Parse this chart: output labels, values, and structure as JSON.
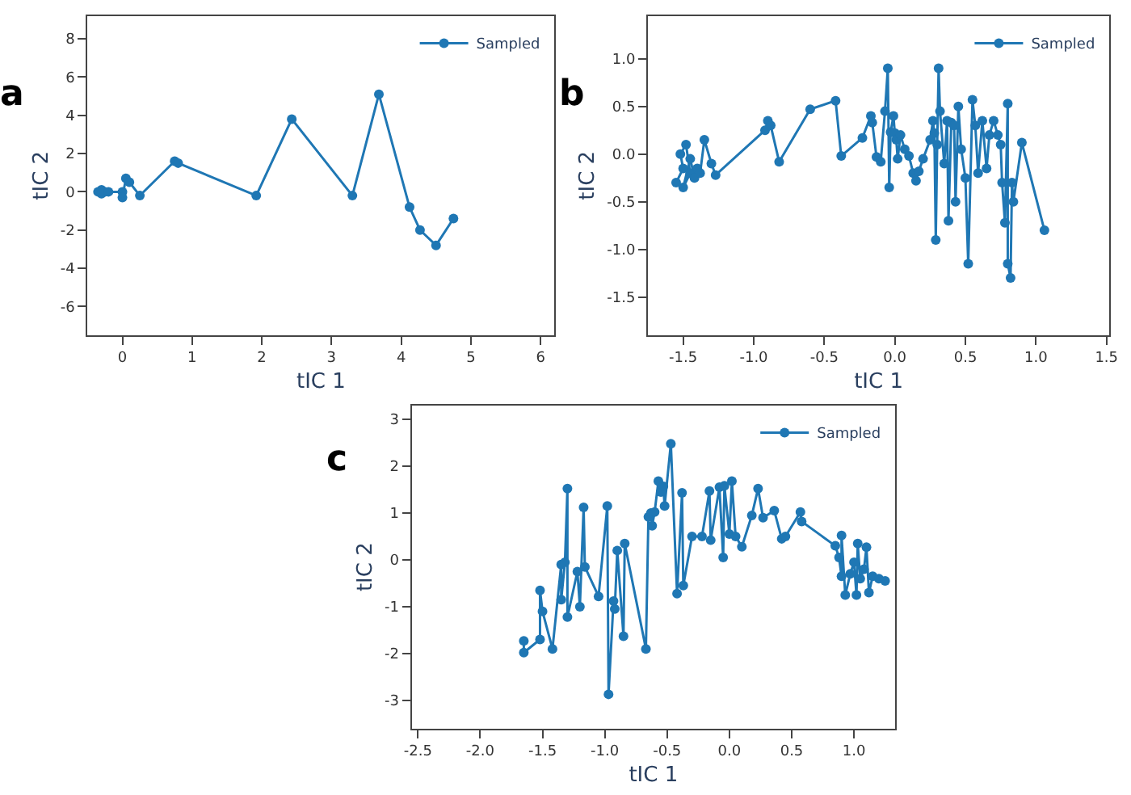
{
  "chart_data": [
    {
      "type": "line",
      "annotations": [
        "a"
      ],
      "xlabel": "tIC 1",
      "ylabel": "tIC 2",
      "xlim": [
        -0.5,
        6.2
      ],
      "ylim": [
        -7.5,
        9.2
      ],
      "xticks": [
        0,
        1,
        2,
        3,
        4,
        5,
        6
      ],
      "yticks": [
        -6,
        -4,
        -2,
        0,
        2,
        4,
        6,
        8
      ],
      "legend": "top right",
      "marker": "circle",
      "line_style": "solid",
      "series": [
        {
          "name": "Sampled",
          "color": "#1f77b4",
          "x": [
            -0.35,
            -0.3,
            -0.25,
            -0.3,
            -0.2,
            0,
            0,
            0.05,
            0.1,
            0.25,
            0.75,
            0.8,
            1.92,
            2.43,
            3.3,
            3.68,
            4.12,
            4.27,
            4.5,
            4.75
          ],
          "values": [
            0,
            0.1,
            0,
            -0.1,
            0,
            0,
            -0.3,
            0.7,
            0.5,
            -0.2,
            1.6,
            1.5,
            -0.2,
            3.8,
            -0.2,
            5.1,
            -0.8,
            -2.0,
            -2.8,
            -1.4
          ]
        }
      ]
    },
    {
      "type": "line",
      "annotations": [
        "b"
      ],
      "xlabel": "tIC 1",
      "ylabel": "tIC 2",
      "xlim": [
        -1.75,
        1.52
      ],
      "ylim": [
        -1.9,
        1.45
      ],
      "xticks": [
        -1.5,
        {
          "value": -1,
          "label": "-1.0"
        },
        -0.5,
        {
          "value": 0,
          "label": "0.0"
        },
        0.5,
        {
          "value": 1,
          "label": "1.0"
        },
        1.5
      ],
      "yticks": [
        -1.5,
        {
          "value": -1,
          "label": "-1.0"
        },
        -0.5,
        {
          "value": 0,
          "label": "0.0"
        },
        0.5,
        {
          "value": 1,
          "label": "1.0"
        }
      ],
      "legend": "top right",
      "marker": "circle",
      "line_style": "solid",
      "series": [
        {
          "name": "Sampled",
          "color": "#1f77b4",
          "x": [
            -1.55,
            -1.5,
            -1.52,
            -1.48,
            -1.45,
            -1.5,
            -1.45,
            -1.42,
            -1.4,
            -1.38,
            -1.35,
            -1.3,
            -1.27,
            -0.92,
            -0.9,
            -0.88,
            -0.82,
            -0.6,
            -0.42,
            -0.38,
            -0.23,
            -0.17,
            -0.16,
            -0.13,
            -0.1,
            -0.07,
            -0.05,
            -0.04,
            -0.03,
            -0.01,
            0,
            0.01,
            0.02,
            0.04,
            0.07,
            0.1,
            0.13,
            0.15,
            0.17,
            0.2,
            0.25,
            0.27,
            0.28,
            0.29,
            0.3,
            0.31,
            0.32,
            0.35,
            0.37,
            0.38,
            0.4,
            0.42,
            0.43,
            0.45,
            0.47,
            0.5,
            0.52,
            0.55,
            0.57,
            0.59,
            0.62,
            0.65,
            0.67,
            0.7,
            0.73,
            0.75,
            0.76,
            0.78,
            0.8,
            0.8,
            0.82,
            0.83,
            0.84,
            0.9,
            1.06
          ],
          "values": [
            -0.3,
            -0.15,
            0,
            0.1,
            -0.2,
            -0.35,
            -0.05,
            -0.25,
            -0.15,
            -0.2,
            0.15,
            -0.1,
            -0.22,
            0.25,
            0.35,
            0.3,
            -0.08,
            0.47,
            0.56,
            -0.02,
            0.17,
            0.4,
            0.33,
            -0.03,
            -0.08,
            0.45,
            0.9,
            -0.35,
            0.23,
            0.4,
            0.22,
            0.15,
            -0.05,
            0.2,
            0.05,
            -0.02,
            -0.2,
            -0.28,
            -0.18,
            -0.05,
            0.15,
            0.35,
            0.22,
            -0.9,
            0.1,
            0.9,
            0.45,
            -0.1,
            0.35,
            -0.7,
            0.33,
            0.3,
            -0.5,
            0.5,
            0.05,
            -0.25,
            -1.15,
            0.57,
            0.3,
            -0.2,
            0.35,
            -0.15,
            0.2,
            0.35,
            0.2,
            0.1,
            -0.3,
            -0.72,
            0.53,
            -1.15,
            -1.3,
            -0.3,
            -0.5,
            0.12,
            -0.8
          ]
        }
      ]
    },
    {
      "type": "line",
      "annotations": [
        "c"
      ],
      "xlabel": "tIC 1",
      "ylabel": "tIC 2",
      "xlim": [
        -2.55,
        1.33
      ],
      "ylim": [
        -3.6,
        3.3
      ],
      "xticks": [
        -2.5,
        {
          "value": -2,
          "label": "-2.0"
        },
        -1.5,
        {
          "value": -1,
          "label": "-1.0"
        },
        -0.5,
        {
          "value": 0,
          "label": "0.0"
        },
        0.5,
        {
          "value": 1,
          "label": "1.0"
        }
      ],
      "yticks": [
        -3,
        -2,
        -1,
        0,
        1,
        2,
        3
      ],
      "legend": "top right",
      "marker": "circle",
      "line_style": "solid",
      "series": [
        {
          "name": "Sampled",
          "color": "#1f77b4",
          "x": [
            -1.65,
            -1.65,
            -1.52,
            -1.52,
            -1.5,
            -1.42,
            -1.35,
            -1.35,
            -1.32,
            -1.3,
            -1.3,
            -1.22,
            -1.2,
            -1.17,
            -1.16,
            -1.05,
            -0.98,
            -0.97,
            -0.93,
            -0.92,
            -0.9,
            -0.85,
            -0.84,
            -0.67,
            -0.65,
            -0.63,
            -0.62,
            -0.6,
            -0.57,
            -0.55,
            -0.53,
            -0.52,
            -0.47,
            -0.42,
            -0.38,
            -0.37,
            -0.3,
            -0.22,
            -0.16,
            -0.15,
            -0.08,
            -0.05,
            -0.04,
            0.0,
            0.02,
            0.05,
            0.1,
            0.18,
            0.23,
            0.27,
            0.36,
            0.42,
            0.45,
            0.57,
            0.58,
            0.85,
            0.88,
            0.9,
            0.9,
            0.93,
            0.97,
            1.0,
            1.02,
            1.03,
            1.05,
            1.08,
            1.1,
            1.12,
            1.15,
            1.2,
            1.25
          ],
          "values": [
            -1.73,
            -1.98,
            -1.7,
            -0.65,
            -1.1,
            -1.9,
            -0.1,
            -0.85,
            -0.05,
            1.52,
            -1.22,
            -0.25,
            -1.0,
            1.12,
            -0.15,
            -0.78,
            1.15,
            -2.87,
            -0.88,
            -1.05,
            0.2,
            -1.63,
            0.35,
            -1.9,
            0.92,
            1.0,
            0.73,
            1.02,
            1.68,
            1.45,
            1.57,
            1.15,
            2.48,
            -0.72,
            1.43,
            -0.55,
            0.5,
            0.5,
            1.47,
            0.42,
            1.55,
            0.05,
            1.58,
            0.55,
            1.68,
            0.5,
            0.28,
            0.95,
            1.52,
            0.9,
            1.05,
            0.45,
            0.5,
            1.02,
            0.82,
            0.3,
            0.05,
            -0.35,
            0.52,
            -0.75,
            -0.3,
            -0.05,
            -0.75,
            0.35,
            -0.4,
            -0.2,
            0.27,
            -0.7,
            -0.35,
            -0.4,
            -0.45
          ]
        }
      ]
    }
  ]
}
